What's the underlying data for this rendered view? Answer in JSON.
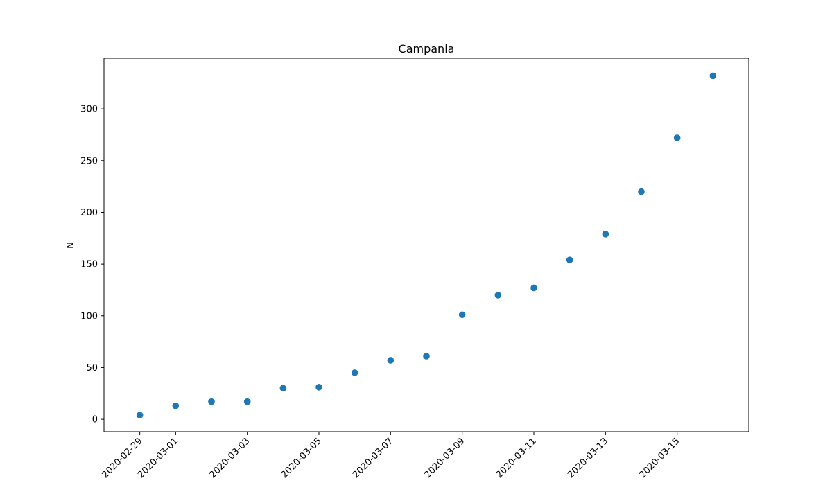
{
  "chart_data": {
    "type": "scatter",
    "title": "Campania",
    "xlabel": "",
    "ylabel": "N",
    "x": [
      "2020-02-29",
      "2020-03-01",
      "2020-03-02",
      "2020-03-03",
      "2020-03-04",
      "2020-03-05",
      "2020-03-06",
      "2020-03-07",
      "2020-03-08",
      "2020-03-09",
      "2020-03-10",
      "2020-03-11",
      "2020-03-12",
      "2020-03-13",
      "2020-03-14",
      "2020-03-15",
      "2020-03-16"
    ],
    "y": [
      4,
      13,
      17,
      17,
      30,
      31,
      45,
      57,
      61,
      101,
      120,
      127,
      154,
      179,
      220,
      272,
      332
    ],
    "xlim": [
      "2020-02-28",
      "2020-03-17"
    ],
    "ylim": [
      -12,
      349
    ],
    "xticks": [
      "2020-02-29",
      "2020-03-01",
      "2020-03-03",
      "2020-03-05",
      "2020-03-07",
      "2020-03-09",
      "2020-03-11",
      "2020-03-13",
      "2020-03-15"
    ],
    "yticks": [
      0,
      50,
      100,
      150,
      200,
      250,
      300
    ],
    "grid": false,
    "color": "#1f77b4"
  }
}
